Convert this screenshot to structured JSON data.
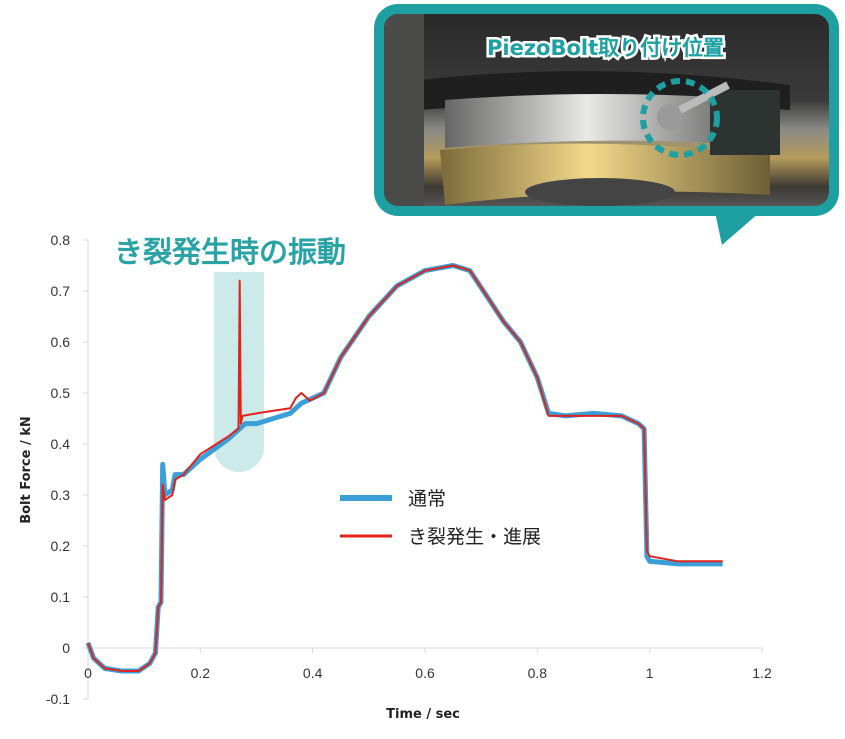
{
  "colors": {
    "normal": "#3a9fd6",
    "crack": "#e0231c",
    "accent": "#1e9fa2",
    "highlight": "#cdeaea"
  },
  "callout": {
    "label": "PiezoBolt取り付け位置"
  },
  "annotation": {
    "text": "き裂発生時の振動"
  },
  "chart_data": {
    "type": "line",
    "title": "",
    "xlabel": "Time / sec",
    "ylabel": "Bolt Force / kN",
    "xlim": [
      0,
      1.2
    ],
    "ylim": [
      -0.1,
      0.8
    ],
    "xticks": [
      "0",
      "0.2",
      "0.4",
      "0.6",
      "0.8",
      "1",
      "1.2"
    ],
    "yticks": [
      "-0.1",
      "0",
      "0.1",
      "0.2",
      "0.3",
      "0.4",
      "0.5",
      "0.6",
      "0.7",
      "0.8"
    ],
    "grid": false,
    "legend": "center-right",
    "series": [
      {
        "name": "通常",
        "color": "#3a9fd6",
        "x": [
          0,
          0.01,
          0.03,
          0.06,
          0.09,
          0.11,
          0.12,
          0.125,
          0.13,
          0.133,
          0.137,
          0.15,
          0.155,
          0.17,
          0.2,
          0.25,
          0.27,
          0.28,
          0.3,
          0.33,
          0.36,
          0.38,
          0.4,
          0.42,
          0.45,
          0.5,
          0.55,
          0.6,
          0.65,
          0.68,
          0.71,
          0.74,
          0.77,
          0.8,
          0.82,
          0.85,
          0.9,
          0.95,
          0.98,
          0.99,
          0.995,
          1.0,
          1.05,
          1.13
        ],
        "y": [
          0.01,
          -0.02,
          -0.04,
          -0.045,
          -0.045,
          -0.03,
          -0.01,
          0.08,
          0.09,
          0.36,
          0.3,
          0.31,
          0.34,
          0.34,
          0.37,
          0.41,
          0.43,
          0.44,
          0.44,
          0.45,
          0.46,
          0.48,
          0.49,
          0.5,
          0.57,
          0.65,
          0.71,
          0.74,
          0.75,
          0.74,
          0.69,
          0.64,
          0.6,
          0.53,
          0.46,
          0.455,
          0.46,
          0.455,
          0.44,
          0.43,
          0.18,
          0.17,
          0.165,
          0.165
        ]
      },
      {
        "name": "き裂発生・進展",
        "color": "#e0231c",
        "x": [
          0,
          0.01,
          0.03,
          0.06,
          0.09,
          0.11,
          0.12,
          0.125,
          0.13,
          0.133,
          0.137,
          0.15,
          0.155,
          0.17,
          0.2,
          0.25,
          0.268,
          0.27,
          0.272,
          0.275,
          0.3,
          0.33,
          0.36,
          0.37,
          0.38,
          0.395,
          0.42,
          0.45,
          0.5,
          0.55,
          0.6,
          0.65,
          0.68,
          0.71,
          0.74,
          0.77,
          0.8,
          0.82,
          0.85,
          0.9,
          0.95,
          0.98,
          0.99,
          0.995,
          1.0,
          1.05,
          1.13
        ],
        "y": [
          0.01,
          -0.02,
          -0.04,
          -0.045,
          -0.045,
          -0.03,
          -0.01,
          0.08,
          0.09,
          0.32,
          0.29,
          0.3,
          0.33,
          0.34,
          0.38,
          0.415,
          0.43,
          0.72,
          0.44,
          0.455,
          0.46,
          0.465,
          0.47,
          0.49,
          0.5,
          0.485,
          0.5,
          0.57,
          0.65,
          0.71,
          0.74,
          0.75,
          0.74,
          0.69,
          0.64,
          0.6,
          0.53,
          0.455,
          0.455,
          0.455,
          0.455,
          0.44,
          0.43,
          0.19,
          0.18,
          0.17,
          0.17
        ]
      }
    ]
  }
}
